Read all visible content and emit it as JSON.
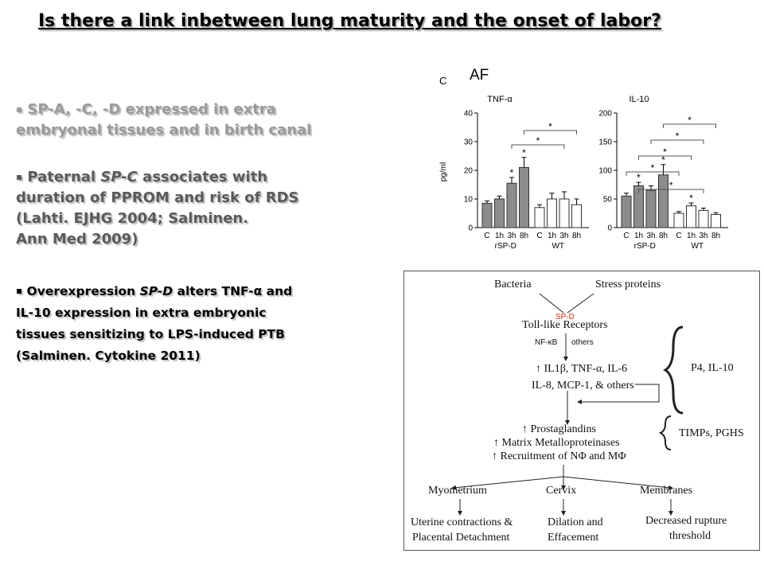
{
  "title": "Is there a link inbetween lung maturity and the onset of labor?",
  "bullets": {
    "marker": "▪",
    "b1": {
      "lines": [
        "SP-A, -C, -D expressed in extra",
        "embryonal tissues and in birth canal"
      ]
    },
    "b2": {
      "l1_pre": "Paternal ",
      "l1_ital": "SP-C",
      "l1_post": " associates with",
      "l2": "duration of PPROM and risk of RDS",
      "l3": "(Lahti. EJHG 2004; Salminen.",
      "l4": "Ann Med 2009)"
    },
    "b3": {
      "l1_pre": "Overexpression ",
      "l1_ital": "SP-D",
      "l1_post": "  alters TNF-α and",
      "l2": "IL-10 expression in extra embryonic",
      "l3": "tissues sensitizing to LPS-induced PTB",
      "l4": "(Salminen. Cytokine 2011)"
    }
  },
  "chart": {
    "panel_letter": "C",
    "header": "AF",
    "ylabel": "pg/ml",
    "group_labels": [
      "rSP-D",
      "WT"
    ],
    "colors": {
      "rspd": "#8c8c8c",
      "wt": "#ffffff",
      "stroke": "#333333"
    }
  },
  "chart_data": [
    {
      "type": "bar",
      "title": "TNF-α",
      "ylabel": "pg/ml",
      "categories": [
        "C",
        "1h",
        "3h",
        "8h",
        "C",
        "1h",
        "3h",
        "8h"
      ],
      "groups": [
        "rSP-D",
        "rSP-D",
        "rSP-D",
        "rSP-D",
        "WT",
        "WT",
        "WT",
        "WT"
      ],
      "values": [
        8.5,
        10,
        15.5,
        21,
        7,
        10,
        10,
        8
      ],
      "errors": [
        0.8,
        1,
        2,
        3.5,
        1,
        2,
        2.5,
        2
      ],
      "significant": [
        false,
        false,
        true,
        true,
        false,
        false,
        false,
        false
      ],
      "ylim": [
        0,
        40
      ],
      "yticks": [
        0,
        10,
        20,
        30,
        40
      ],
      "comparisons": [
        "*",
        "*"
      ]
    },
    {
      "type": "bar",
      "title": "IL-10",
      "ylabel": "pg/ml",
      "categories": [
        "C",
        "1h",
        "3h",
        "8h",
        "C",
        "1h",
        "3h",
        "8h"
      ],
      "groups": [
        "rSP-D",
        "rSP-D",
        "rSP-D",
        "rSP-D",
        "WT",
        "WT",
        "WT",
        "WT"
      ],
      "values": [
        55,
        73,
        65,
        92,
        25,
        38,
        30,
        23
      ],
      "errors": [
        5,
        6,
        8,
        18,
        3,
        5,
        4,
        3
      ],
      "significant": [
        false,
        true,
        false,
        true,
        false,
        true,
        false,
        false
      ],
      "ylim": [
        0,
        200
      ],
      "yticks": [
        0,
        50,
        100,
        150,
        200
      ],
      "comparisons": [
        "*",
        "*",
        "*",
        "*",
        "*"
      ]
    }
  ],
  "diagram": {
    "bacteria": "Bacteria",
    "stress": "Stress proteins",
    "spd": "SP-D",
    "tlr": "Toll-like Receptors",
    "nfkb": "NF-κB",
    "others": "others",
    "cyto1": "↑ IL1β, TNF-α, IL-6",
    "cyto2": "IL-8, MCP-1, & others",
    "p4": "P4, IL-10",
    "prost": "↑ Prostaglandins",
    "mmp": "↑ Matrix Metalloproteinases",
    "recruit": "↑ Recruitment of NΦ and MΦ",
    "timps": "TIMPs, PGHS",
    "myo": "Myometrium",
    "cervix": "Cervix",
    "membranes": "Membranes",
    "out1a": "Uterine contractions &",
    "out1b": "Placental Detachment",
    "out2a": "Dilation and",
    "out2b": "Effacement",
    "out3a": "Decreased rupture",
    "out3b": "threshold",
    "spd_color": "#d03010"
  }
}
